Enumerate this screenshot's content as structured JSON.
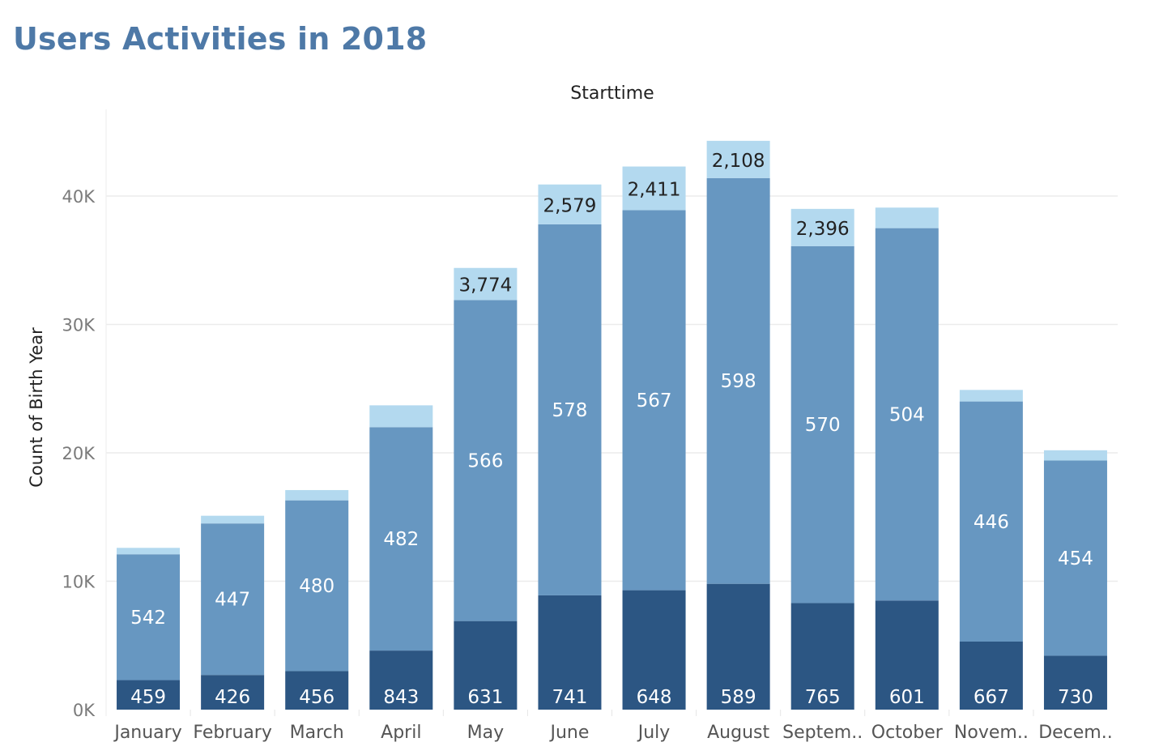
{
  "title": "Users Activities in 2018",
  "colors": {
    "title": "#4e79a7",
    "bottom": "#2c5683",
    "middle": "#6797c1",
    "top": "#b3d9ef",
    "grid": "#ececec"
  },
  "chart_data": {
    "type": "bar",
    "stacked": true,
    "header": "Starttime",
    "ylabel": "Count of Birth Year",
    "xlabel": "",
    "ylim": [
      0,
      40000
    ],
    "yticks": [
      0,
      10000,
      20000,
      30000,
      40000
    ],
    "ytick_labels": [
      "0K",
      "10K",
      "20K",
      "30K",
      "40K"
    ],
    "grid": true,
    "categories": [
      "January",
      "February",
      "March",
      "April",
      "May",
      "June",
      "July",
      "August",
      "Septem..",
      "October",
      "Novem..",
      "Decem.."
    ],
    "series": [
      {
        "values": [
          2300,
          2700,
          3000,
          4600,
          6900,
          8900,
          9300,
          9800,
          8300,
          8500,
          5300,
          4200
        ],
        "labels": [
          "459",
          "426",
          "456",
          "843",
          "631",
          "741",
          "648",
          "589",
          "765",
          "601",
          "667",
          "730"
        ]
      },
      {
        "values": [
          9800,
          11800,
          13300,
          17400,
          25000,
          28900,
          29600,
          31600,
          27800,
          29000,
          18700,
          15200
        ],
        "labels": [
          "542",
          "447",
          "480",
          "482",
          "566",
          "578",
          "567",
          "598",
          "570",
          "504",
          "446",
          "454"
        ]
      },
      {
        "values": [
          500,
          600,
          800,
          1700,
          2500,
          3100,
          3400,
          2900,
          2900,
          1600,
          900,
          800
        ],
        "labels": [
          "",
          "",
          "",
          "",
          "3,774",
          "2,579",
          "2,411",
          "2,108",
          "2,396",
          "",
          "",
          ""
        ]
      }
    ]
  }
}
